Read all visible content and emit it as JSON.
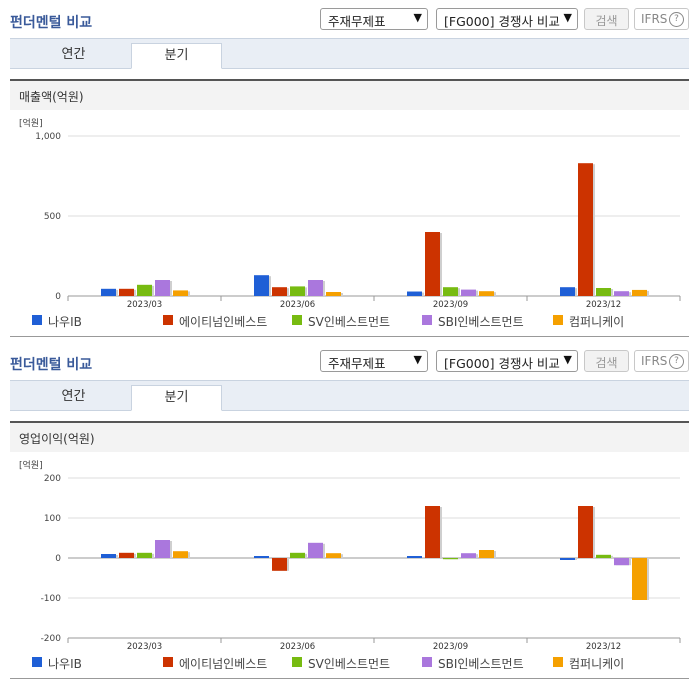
{
  "panels": [
    {
      "title": "펀더멘털 비교",
      "select1": "주재무제표",
      "select2": "[FG000] 경쟁사 비교",
      "search_btn": "검색",
      "ifrs": "IFRS",
      "tabs": [
        "연간",
        "분기"
      ],
      "active_tab": "분기",
      "subtitle": "매출액(억원)"
    },
    {
      "title": "펀더멘털 비교",
      "select1": "주재무제표",
      "select2": "[FG000] 경쟁사 비교",
      "search_btn": "검색",
      "ifrs": "IFRS",
      "tabs": [
        "연간",
        "분기"
      ],
      "active_tab": "분기",
      "subtitle": "영업이익(억원)"
    }
  ],
  "chart_data": [
    {
      "type": "bar",
      "unit_label": "[억원]",
      "categories": [
        "2023/03",
        "2023/06",
        "2023/09",
        "2023/12"
      ],
      "ylim": [
        0,
        1000
      ],
      "yticks": [
        0,
        500,
        1000
      ],
      "ytick_labels": [
        "0",
        "500",
        "1,000"
      ],
      "series": [
        {
          "name": "나우IB",
          "color": "#1f5fd6",
          "values": [
            45,
            130,
            28,
            55
          ]
        },
        {
          "name": "에이티넘인베스트",
          "color": "#cc3300",
          "values": [
            45,
            55,
            400,
            830
          ]
        },
        {
          "name": "SV인베스트먼트",
          "color": "#77bb11",
          "values": [
            70,
            60,
            55,
            50
          ]
        },
        {
          "name": "SBI인베스트먼트",
          "color": "#aa77dd",
          "values": [
            100,
            100,
            40,
            30
          ]
        },
        {
          "name": "컴퍼니케이",
          "color": "#f5a000",
          "values": [
            35,
            25,
            30,
            38
          ]
        }
      ]
    },
    {
      "type": "bar",
      "unit_label": "[억원]",
      "categories": [
        "2023/03",
        "2023/06",
        "2023/09",
        "2023/12"
      ],
      "ylim": [
        -200,
        200
      ],
      "yticks": [
        -200,
        -100,
        0,
        100,
        200
      ],
      "ytick_labels": [
        "-200",
        "-100",
        "0",
        "100",
        "200"
      ],
      "series": [
        {
          "name": "나우IB",
          "color": "#1f5fd6",
          "values": [
            10,
            5,
            5,
            -5
          ]
        },
        {
          "name": "에이티넘인베스트",
          "color": "#cc3300",
          "values": [
            13,
            -32,
            130,
            130
          ]
        },
        {
          "name": "SV인베스트먼트",
          "color": "#77bb11",
          "values": [
            13,
            13,
            -3,
            8
          ]
        },
        {
          "name": "SBI인베스트먼트",
          "color": "#aa77dd",
          "values": [
            45,
            38,
            12,
            -18
          ]
        },
        {
          "name": "컴퍼니케이",
          "color": "#f5a000",
          "values": [
            17,
            12,
            20,
            -105
          ]
        }
      ]
    }
  ]
}
